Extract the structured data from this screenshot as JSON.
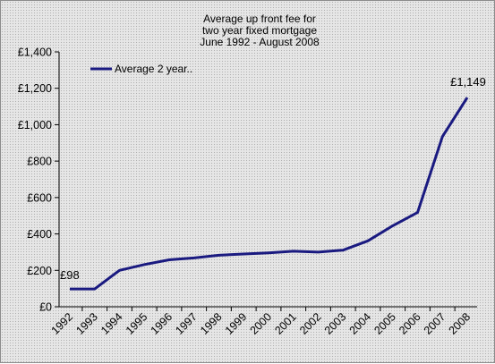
{
  "chart_data": {
    "type": "line",
    "title": [
      "Average up front fee for",
      "two year fixed mortgage",
      "June 1992 - August 2008"
    ],
    "xlabel": "",
    "ylabel": "",
    "categories": [
      "1992",
      "1993",
      "1994",
      "1995",
      "1996",
      "1997",
      "1998",
      "1999",
      "2000",
      "2001",
      "2002",
      "2003",
      "2004",
      "2005",
      "2006",
      "2007",
      "2008"
    ],
    "series": [
      {
        "name": "Average 2 year..",
        "x": [
          1992.0,
          1992.5,
          1993.0,
          1994.0,
          1995.0,
          1996.0,
          1997.0,
          1998.0,
          1999.0,
          2000.0,
          2001.0,
          2002.0,
          2003.0,
          2004.0,
          2005.0,
          2006.0,
          2007.0,
          2008.0
        ],
        "values": [
          98,
          98,
          98,
          200,
          232,
          258,
          268,
          283,
          290,
          296,
          305,
          300,
          311,
          362,
          445,
          518,
          935,
          1149
        ],
        "color": "#1a1a80"
      }
    ],
    "ylim": [
      0,
      1400
    ],
    "yticks": [
      0,
      200,
      400,
      600,
      800,
      1000,
      1200,
      1400
    ],
    "ytick_labels": [
      "£0",
      "£200",
      "£400",
      "£600",
      "£800",
      "£1,000",
      "£1,200",
      "£1,400"
    ],
    "annotations": [
      {
        "text": "£98",
        "x": 1992.0,
        "y": 98
      },
      {
        "text": "£1,149",
        "x": 2008.0,
        "y": 1149
      }
    ],
    "legend_position": "top-left",
    "grid": false,
    "background": "stippled grey"
  }
}
